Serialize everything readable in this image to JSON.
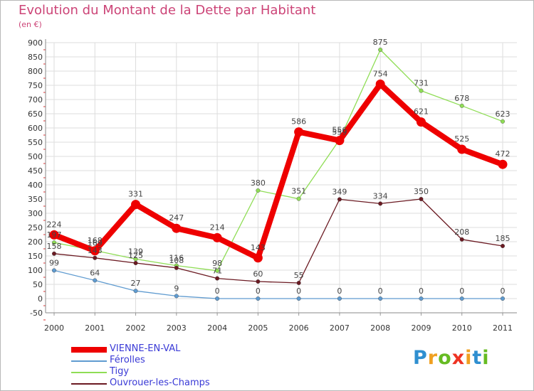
{
  "header": {
    "title": "Evolution du Montant de la Dette par Habitant",
    "unit": "(en €)"
  },
  "logo": {
    "text": "Proxiti",
    "letter_colors": [
      "#2f8fd0",
      "#f0a020",
      "#66bb22",
      "#ee3322",
      "#f0a020",
      "#2f8fd0",
      "#66bb22"
    ]
  },
  "chart_data": {
    "type": "line",
    "title": "Evolution du Montant de la Dette par Habitant",
    "subtitle": "(en €)",
    "xlabel": "",
    "ylabel": "",
    "x": [
      "2000",
      "2001",
      "2002",
      "2003",
      "2004",
      "2005",
      "2006",
      "2007",
      "2008",
      "2009",
      "2010",
      "2011"
    ],
    "ylim": [
      -50,
      900
    ],
    "yticks": [
      -50,
      0,
      50,
      100,
      150,
      200,
      250,
      300,
      350,
      400,
      450,
      500,
      550,
      600,
      650,
      700,
      750,
      800,
      850,
      900
    ],
    "grid": true,
    "legend_position": "bottom-left",
    "series": [
      {
        "name": "VIENNE-EN-VAL",
        "color": "#ee0000",
        "emphasis": true,
        "values": [
          224,
          168,
          331,
          247,
          214,
          143,
          586,
          556,
          754,
          621,
          525,
          472
        ]
      },
      {
        "name": "Férolles",
        "color": "#5f9bd0",
        "emphasis": false,
        "values": [
          99,
          64,
          27,
          9,
          0,
          0,
          0,
          0,
          0,
          0,
          0,
          0
        ]
      },
      {
        "name": "Tigy",
        "color": "#8fdd55",
        "emphasis": false,
        "values": [
          197,
          169,
          139,
          116,
          98,
          380,
          351,
          559,
          875,
          731,
          678,
          623
        ]
      },
      {
        "name": "Ouvrouer-les-Champs",
        "color": "#6b1a22",
        "emphasis": false,
        "values": [
          158,
          143,
          125,
          108,
          71,
          60,
          55,
          349,
          334,
          350,
          208,
          185
        ]
      }
    ]
  }
}
